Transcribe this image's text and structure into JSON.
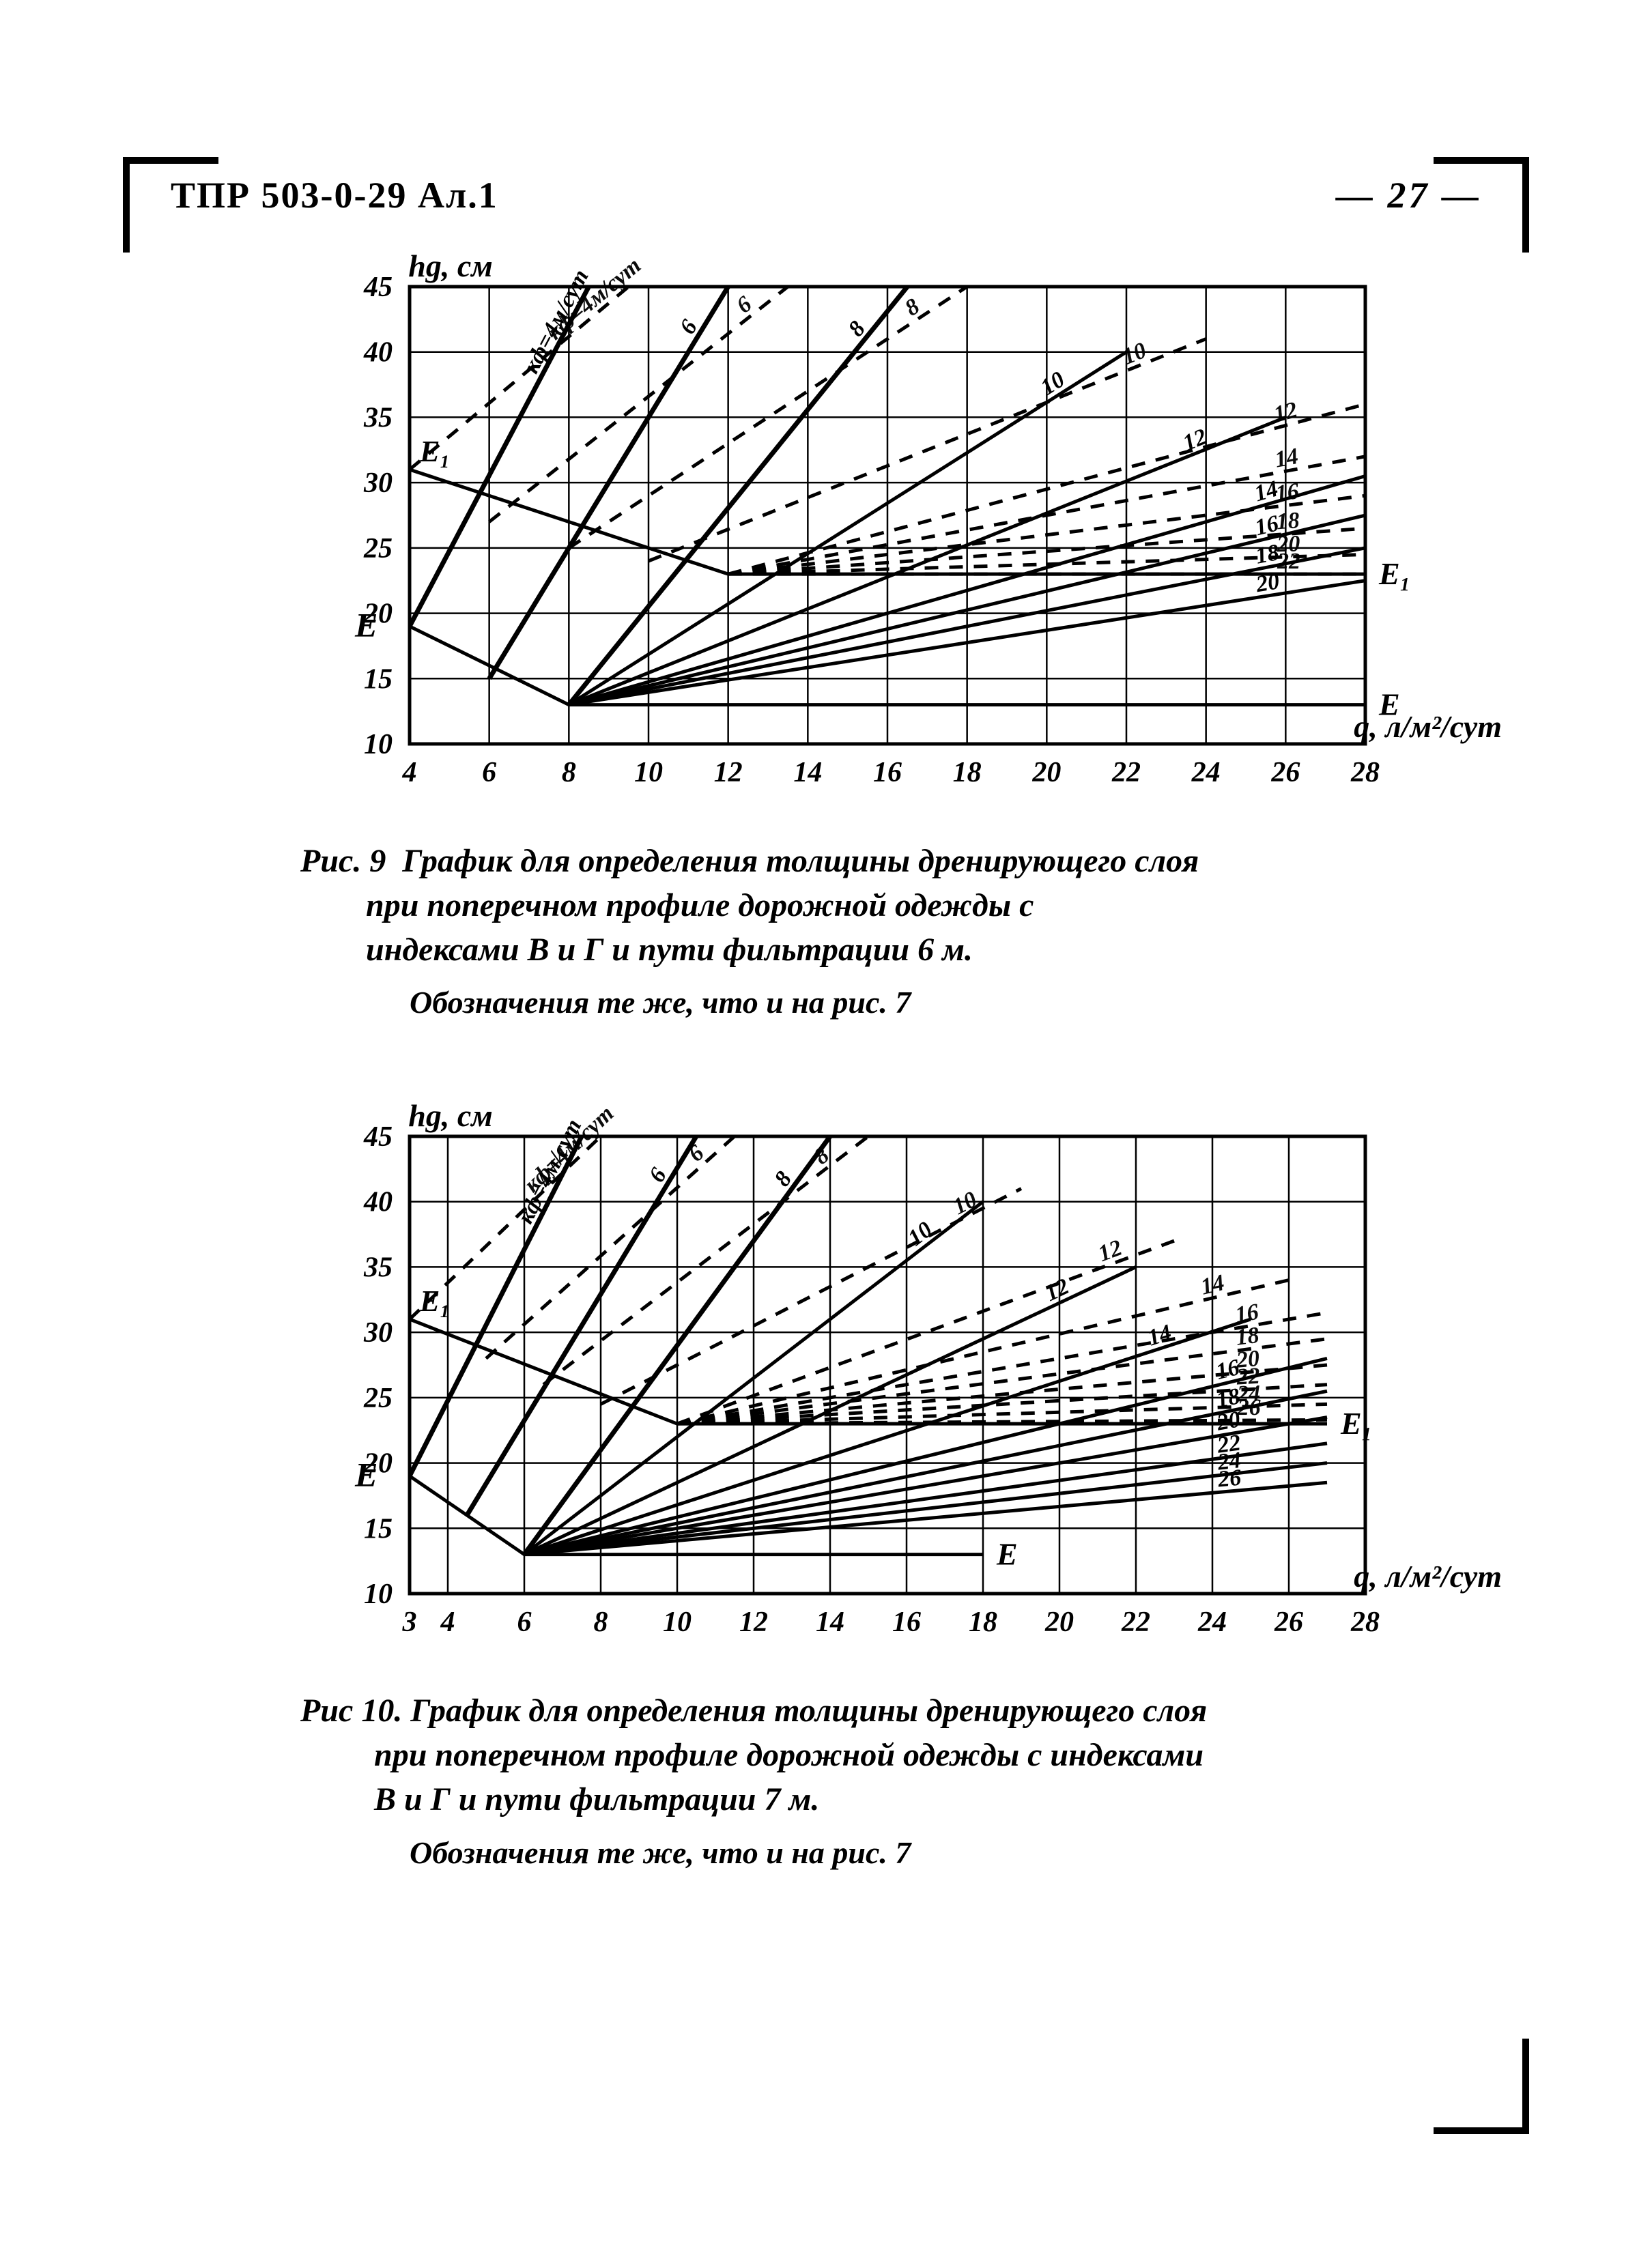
{
  "header": {
    "doc_code": "ТПР 503-0-29 Ал.1",
    "page_number": "— 27 —"
  },
  "typography": {
    "caption_fontsize": 48,
    "tick_fontsize": 42,
    "axis_label_fontsize": 46,
    "series_label_fontsize": 34
  },
  "colors": {
    "ink": "#000000",
    "bg": "#ffffff",
    "grid": "#000000"
  },
  "chart9": {
    "type": "line",
    "y_axis_label": "hg, см",
    "x_axis_label": "q, л/м²/сут",
    "xlim": [
      4,
      28
    ],
    "ylim": [
      10,
      45
    ],
    "xtick_step": 2,
    "ytick_step": 5,
    "xticks": [
      4,
      6,
      8,
      10,
      12,
      14,
      16,
      18,
      20,
      22,
      24,
      26,
      28
    ],
    "yticks": [
      10,
      15,
      20,
      25,
      30,
      35,
      40,
      45
    ],
    "grid_line_width": 2.5,
    "axis_line_width": 5,
    "E_label_left": "E",
    "E1_label_left": "E₁",
    "E_label_right": "E",
    "E1_label_right": "E₁",
    "e_line": {
      "points": [
        [
          4,
          19
        ],
        [
          8,
          13
        ],
        [
          28,
          13
        ]
      ],
      "width": 5,
      "dash": ""
    },
    "e1_line": {
      "points": [
        [
          4,
          31
        ],
        [
          12,
          23
        ],
        [
          28,
          23
        ]
      ],
      "width": 5,
      "dash": ""
    },
    "series_solid": [
      {
        "label": "кф=4м/сут",
        "points": [
          [
            4,
            19
          ],
          [
            8.5,
            45
          ]
        ],
        "width": 7
      },
      {
        "label": "6",
        "points": [
          [
            6,
            15
          ],
          [
            12,
            45
          ]
        ],
        "width": 7
      },
      {
        "label": "8",
        "points": [
          [
            8,
            13
          ],
          [
            16.5,
            45
          ]
        ],
        "width": 7
      },
      {
        "label": "10",
        "points": [
          [
            8,
            13
          ],
          [
            22,
            40
          ]
        ],
        "width": 5
      },
      {
        "label": "12",
        "points": [
          [
            8,
            13
          ],
          [
            26,
            35
          ]
        ],
        "width": 5
      },
      {
        "label": "14",
        "points": [
          [
            8,
            13
          ],
          [
            28,
            30.5
          ]
        ],
        "width": 5
      },
      {
        "label": "16",
        "points": [
          [
            8,
            13
          ],
          [
            28,
            27.5
          ]
        ],
        "width": 5
      },
      {
        "label": "18",
        "points": [
          [
            8,
            13
          ],
          [
            28,
            25
          ]
        ],
        "width": 5
      },
      {
        "label": "20",
        "points": [
          [
            8,
            13
          ],
          [
            28,
            22.5
          ]
        ],
        "width": 5
      }
    ],
    "series_dashed": [
      {
        "label": "кф=4м/сут",
        "points": [
          [
            4,
            31
          ],
          [
            9.5,
            45
          ]
        ],
        "width": 5
      },
      {
        "label": "6",
        "points": [
          [
            6,
            27
          ],
          [
            13.5,
            45
          ]
        ],
        "width": 5
      },
      {
        "label": "8",
        "points": [
          [
            8,
            25
          ],
          [
            18,
            45
          ]
        ],
        "width": 5
      },
      {
        "label": "10",
        "points": [
          [
            10,
            24
          ],
          [
            24,
            41
          ]
        ],
        "width": 5
      },
      {
        "label": "12",
        "points": [
          [
            12,
            23
          ],
          [
            28,
            36
          ]
        ],
        "width": 5
      },
      {
        "label": "14",
        "points": [
          [
            12,
            23
          ],
          [
            28,
            32
          ]
        ],
        "width": 5
      },
      {
        "label": "16",
        "points": [
          [
            12,
            23
          ],
          [
            28,
            29
          ]
        ],
        "width": 5
      },
      {
        "label": "18",
        "points": [
          [
            12,
            23
          ],
          [
            28,
            26.5
          ]
        ],
        "width": 5
      },
      {
        "label": "20",
        "points": [
          [
            12,
            23
          ],
          [
            28,
            24.5
          ]
        ],
        "width": 5
      },
      {
        "label": "22",
        "points": [
          [
            12,
            23
          ],
          [
            28.0,
            23.0
          ]
        ],
        "width": 5
      }
    ],
    "caption": "Рис. 9  График для определения толщины дренирующего слоя\n        при поперечном профиле дорожной одежды с\n        индексами В и Г и пути фильтрации 6 м.",
    "caption_sub": "Обозначения те же, что и на рис. 7"
  },
  "chart10": {
    "type": "line",
    "y_axis_label": "hg, см",
    "x_axis_label": "q, л/м²/сут",
    "xlim": [
      3,
      28
    ],
    "ylim": [
      10,
      45
    ],
    "xtick_step": 2,
    "ytick_step": 5,
    "xticks": [
      3,
      4,
      6,
      8,
      10,
      12,
      14,
      16,
      18,
      20,
      22,
      24,
      26,
      28
    ],
    "yticks": [
      10,
      15,
      20,
      25,
      30,
      35,
      40,
      45
    ],
    "grid_line_width": 2.5,
    "axis_line_width": 5,
    "E_label_left": "E",
    "E1_label_left": "E₁",
    "E_label_right": "E",
    "E1_label_right": "E₁",
    "e_line": {
      "points": [
        [
          3,
          19
        ],
        [
          6,
          13
        ],
        [
          18,
          13
        ]
      ],
      "width": 5,
      "dash": ""
    },
    "e1_line": {
      "points": [
        [
          3,
          31
        ],
        [
          10,
          23
        ],
        [
          27,
          23
        ]
      ],
      "width": 5,
      "dash": ""
    },
    "series_solid": [
      {
        "label": "кф=4м/сут",
        "points": [
          [
            3,
            19
          ],
          [
            7.5,
            45
          ]
        ],
        "width": 7
      },
      {
        "label": "6",
        "points": [
          [
            4.5,
            16
          ],
          [
            10.5,
            45
          ]
        ],
        "width": 7
      },
      {
        "label": "8",
        "points": [
          [
            6,
            13
          ],
          [
            14,
            45
          ]
        ],
        "width": 7
      },
      {
        "label": "10",
        "points": [
          [
            6,
            13
          ],
          [
            18,
            40
          ]
        ],
        "width": 5
      },
      {
        "label": "12",
        "points": [
          [
            6,
            13
          ],
          [
            22,
            35
          ]
        ],
        "width": 5
      },
      {
        "label": "14",
        "points": [
          [
            6,
            13
          ],
          [
            25,
            31
          ]
        ],
        "width": 5
      },
      {
        "label": "16",
        "points": [
          [
            6,
            13
          ],
          [
            27,
            28
          ]
        ],
        "width": 5
      },
      {
        "label": "18",
        "points": [
          [
            6,
            13
          ],
          [
            27,
            25.5
          ]
        ],
        "width": 5
      },
      {
        "label": "20",
        "points": [
          [
            6,
            13
          ],
          [
            27,
            23.5
          ]
        ],
        "width": 5
      },
      {
        "label": "22",
        "points": [
          [
            6,
            13
          ],
          [
            27,
            21.5
          ]
        ],
        "width": 5
      },
      {
        "label": "24",
        "points": [
          [
            6,
            13
          ],
          [
            27,
            20
          ]
        ],
        "width": 5
      },
      {
        "label": "26",
        "points": [
          [
            6,
            13
          ],
          [
            27,
            18.5
          ]
        ],
        "width": 5
      }
    ],
    "series_dashed": [
      {
        "label": "кф=4м/сут",
        "points": [
          [
            3,
            31
          ],
          [
            8,
            45
          ]
        ],
        "width": 5
      },
      {
        "label": "6",
        "points": [
          [
            5,
            28
          ],
          [
            11.5,
            45
          ]
        ],
        "width": 5
      },
      {
        "label": "8",
        "points": [
          [
            6.5,
            26
          ],
          [
            15,
            45
          ]
        ],
        "width": 5
      },
      {
        "label": "10",
        "points": [
          [
            8,
            24.5
          ],
          [
            19,
            41
          ]
        ],
        "width": 5
      },
      {
        "label": "12",
        "points": [
          [
            10,
            23
          ],
          [
            23,
            37
          ]
        ],
        "width": 5
      },
      {
        "label": "14",
        "points": [
          [
            10,
            23
          ],
          [
            26,
            34
          ]
        ],
        "width": 5
      },
      {
        "label": "16",
        "points": [
          [
            10,
            23
          ],
          [
            27,
            31.5
          ]
        ],
        "width": 5
      },
      {
        "label": "18",
        "points": [
          [
            10,
            23
          ],
          [
            27,
            29.5
          ]
        ],
        "width": 5
      },
      {
        "label": "20",
        "points": [
          [
            10,
            23
          ],
          [
            27,
            27.5
          ]
        ],
        "width": 5
      },
      {
        "label": "22",
        "points": [
          [
            10,
            23
          ],
          [
            27,
            26
          ]
        ],
        "width": 5
      },
      {
        "label": "24",
        "points": [
          [
            10,
            23
          ],
          [
            27,
            24.5
          ]
        ],
        "width": 5
      },
      {
        "label": "26",
        "points": [
          [
            10,
            23
          ],
          [
            27,
            23.3
          ]
        ],
        "width": 5
      }
    ],
    "caption": "Рис 10. График для определения толщины дренирующего слоя\n         при поперечном профиле дорожной одежды с индексами\n         В и Г и пути фильтрации 7 м.",
    "caption_sub": "Обозначения те же, что и на рис. 7"
  }
}
